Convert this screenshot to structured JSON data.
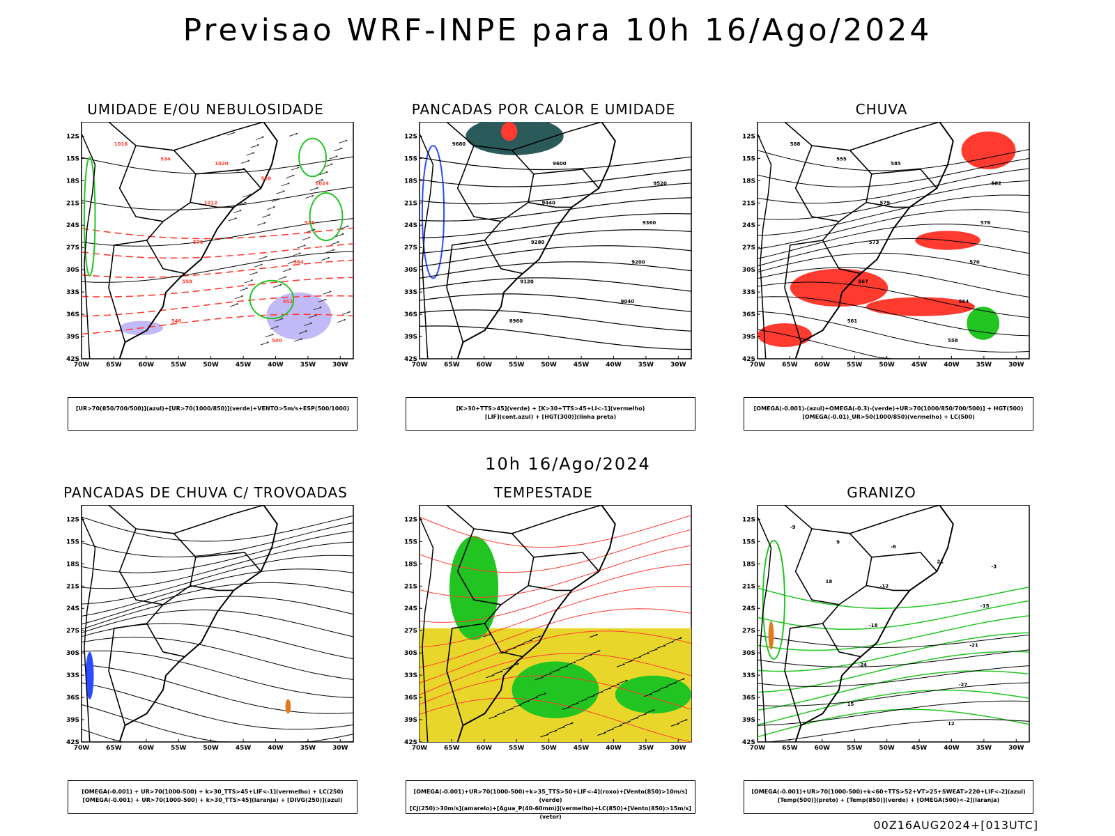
{
  "title": "Previsao WRF-INPE  para 10h 16/Ago/2024",
  "subtitle": "10h 16/Ago/2024",
  "footer": "00Z16AUG2024+[013UTC]",
  "axes": {
    "lat_ticks": [
      "12S",
      "15S",
      "18S",
      "21S",
      "24S",
      "27S",
      "30S",
      "33S",
      "36S",
      "39S",
      "42S"
    ],
    "lon_ticks": [
      "70W",
      "65W",
      "60W",
      "55W",
      "50W",
      "45W",
      "40W",
      "35W",
      "30W"
    ]
  },
  "panels": [
    {
      "title": "UMIDADE E/OU NEBULOSIDADE",
      "legend": [
        "[UR>70(850/700/500)](azul)+[UR>70(1000/850)](verde)+VENTO>5m/s+ESP(500/1000)"
      ],
      "labels": [
        "1016",
        "1020",
        "1024",
        "1012",
        "576",
        "570",
        "564",
        "558",
        "552",
        "546",
        "540",
        "534",
        "528"
      ]
    },
    {
      "title": "PANCADAS POR CALOR E UMIDADE",
      "legend": [
        "[K>30+TTS>45](verde) + [K>30+TTS>45+LI<-1](vermelho)",
        "[LIF](cont.azul) + [HGT(300)](linha preta)"
      ],
      "labels": [
        "9680",
        "9600",
        "9520",
        "9440",
        "9360",
        "9280",
        "9200",
        "9120",
        "9040",
        "8960"
      ]
    },
    {
      "title": "CHUVA",
      "legend": [
        "[OMEGA(-0.001)-(azul)+OMEGA(-0.3)-(verde)+UR>70(1000/850/700/500)] + HGT(500)",
        "[OMEGA(-0.01)_UR>50(1000/850)(vermelho) + LC(500)"
      ],
      "labels": [
        "588",
        "585",
        "582",
        "579",
        "576",
        "573",
        "570",
        "567",
        "564",
        "561",
        "558",
        "555"
      ]
    },
    {
      "title": "PANCADAS DE CHUVA C/ TROVOADAS",
      "legend": [
        "[OMEGA(-0.001) + UR>70(1000-500) + k>30_TTS>45+LIF<-1](vermelho) + LC(250)",
        "[OMEGA(-0.001) + UR>70(1000-500) + k>30_TTS>45](laranja) + [DIVG(250)](azul)"
      ],
      "labels": []
    },
    {
      "title": "TEMPESTADE",
      "legend": [
        "[OMEGA(-0.001)+UR>70(1000-500)+k>35_TTS>50+LIF<-4](roxo)+[Vento(850)>10m/s](verde)",
        "[CJ(250)>30m/s](amarelo)+[Agua_P(40-60mm)](vermelho)+LC(850)+[Vento(850)>15m/s](vetor)"
      ],
      "labels": []
    },
    {
      "title": "GRANIZO",
      "legend": [
        "[OMEGA(-0.001)+UR>70(1000-500)+k<60+TTS>52+VT>25+SWEAT>220+LIF<-2](azul)",
        "[Temp(500)](preto) + [Temp(850)](verde) + [OMEGA(500)<-2](laranja)"
      ],
      "labels": [
        "-9",
        "-6",
        "-3",
        "-12",
        "-15",
        "-18",
        "-21",
        "-24",
        "-27",
        "15",
        "12",
        "9",
        "21",
        "18"
      ]
    }
  ],
  "colors": {
    "red": "#ff3b30",
    "green": "#22c422",
    "blue": "#2a4bff",
    "yellow": "#e8d72a",
    "teal": "#2b5a5a",
    "orange": "#e07a1e",
    "lavender": "#9a8cf0"
  }
}
